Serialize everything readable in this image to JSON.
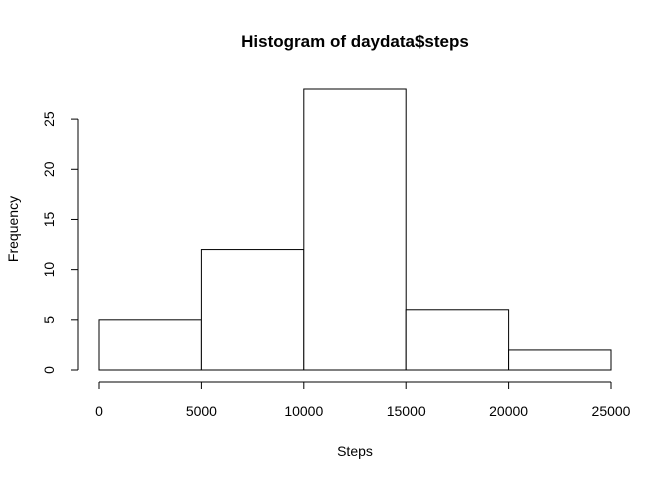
{
  "chart_data": {
    "type": "bar",
    "subtype": "histogram",
    "title": "Histogram of daydata$steps",
    "xlabel": "Steps",
    "ylabel": "Frequency",
    "bins": [
      {
        "from": 0,
        "to": 5000,
        "count": 5
      },
      {
        "from": 5000,
        "to": 10000,
        "count": 12
      },
      {
        "from": 10000,
        "to": 15000,
        "count": 28
      },
      {
        "from": 15000,
        "to": 20000,
        "count": 6
      },
      {
        "from": 20000,
        "to": 25000,
        "count": 2
      }
    ],
    "xlim": [
      0,
      25000
    ],
    "ylim": [
      0,
      28
    ],
    "xticks": [
      0,
      5000,
      10000,
      15000,
      20000,
      25000
    ],
    "yticks": [
      0,
      5,
      10,
      15,
      20,
      25
    ],
    "grid": false,
    "bar_fill": "#ffffff",
    "bar_stroke": "#000000"
  }
}
